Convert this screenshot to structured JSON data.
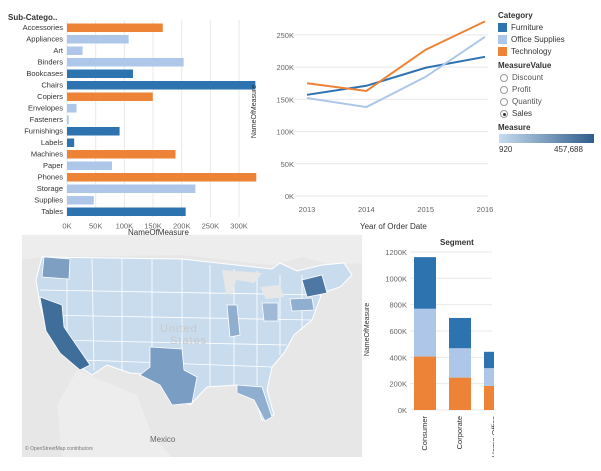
{
  "colors": {
    "furniture": "#2c73b0",
    "office_supplies": "#aec7e8",
    "technology": "#ed8336",
    "grid": "#e9e9e9",
    "axis_text": "#666666"
  },
  "bar_panel": {
    "header": "Sub-Catego..",
    "xlabel": "NameOfMeasure"
  },
  "line_panel": {
    "ylabel": "NameOfMeasure",
    "xlabel": "Year of Order Date"
  },
  "legend": {
    "category_title": "Category",
    "categories": [
      {
        "label": "Furniture",
        "color": "#2c73b0"
      },
      {
        "label": "Office Supplies",
        "color": "#aec7e8"
      },
      {
        "label": "Technology",
        "color": "#ed8336"
      }
    ],
    "measure_value_title": "MeasureValue",
    "measure_values": [
      {
        "label": "Discount",
        "selected": false
      },
      {
        "label": "Profit",
        "selected": false
      },
      {
        "label": "Quantity",
        "selected": false
      },
      {
        "label": "Sales",
        "selected": true
      }
    ],
    "measure_title": "Measure",
    "measure_min": "920",
    "measure_max": "457,688"
  },
  "map_panel": {
    "label_united": "United",
    "label_states": "States",
    "label_mexico": "Mexico",
    "attribution": "© OpenStreetMap contributors"
  },
  "segment_panel": {
    "title": "Segment",
    "ylabel": "NameOfMeasure"
  },
  "chart_data": [
    {
      "type": "bar",
      "orientation": "horizontal",
      "categories": [
        "Accessories",
        "Appliances",
        "Art",
        "Binders",
        "Bookcases",
        "Chairs",
        "Copiers",
        "Envelopes",
        "Fasteners",
        "Furnishings",
        "Labels",
        "Machines",
        "Paper",
        "Phones",
        "Storage",
        "Supplies",
        "Tables"
      ],
      "category_group": [
        "Technology",
        "Office Supplies",
        "Office Supplies",
        "Office Supplies",
        "Furniture",
        "Furniture",
        "Technology",
        "Office Supplies",
        "Office Supplies",
        "Furniture",
        "Furniture",
        "Technology",
        "Office Supplies",
        "Technology",
        "Office Supplies",
        "Office Supplies",
        "Furniture"
      ],
      "values": [
        167000,
        107500,
        27100,
        203400,
        115000,
        328400,
        149500,
        16500,
        3000,
        91700,
        12500,
        189200,
        78500,
        330000,
        223800,
        46700,
        206900
      ],
      "xlabel": "NameOfMeasure",
      "xlim": [
        0,
        340000
      ],
      "xticks": [
        "0K",
        "50K",
        "100K",
        "150K",
        "200K",
        "250K",
        "300K"
      ],
      "grid": true
    },
    {
      "type": "line",
      "x": [
        "2013",
        "2014",
        "2015",
        "2016"
      ],
      "series": [
        {
          "name": "Furniture",
          "values": [
            157000,
            171000,
            199000,
            216000
          ]
        },
        {
          "name": "Office Supplies",
          "values": [
            152000,
            138000,
            185000,
            247000
          ]
        },
        {
          "name": "Technology",
          "values": [
            175000,
            163000,
            227000,
            271000
          ]
        }
      ],
      "xlabel": "Year of Order Date",
      "ylabel": "NameOfMeasure",
      "ylim": [
        0,
        270000
      ],
      "yticks": [
        "0K",
        "50K",
        "100K",
        "150K",
        "200K",
        "250K"
      ],
      "grid": true
    },
    {
      "type": "bar",
      "stacked": true,
      "title": "Segment",
      "categories": [
        "Consumer",
        "Corporate",
        "Home Office"
      ],
      "series": [
        {
          "name": "Technology",
          "values": [
            406000,
            246000,
            183000
          ]
        },
        {
          "name": "Office Supplies",
          "values": [
            363000,
            223000,
            135000
          ]
        },
        {
          "name": "Furniture",
          "values": [
            392000,
            230000,
            124000
          ]
        }
      ],
      "ylabel": "NameOfMeasure",
      "ylim": [
        0,
        1200000
      ],
      "yticks": [
        "0K",
        "200K",
        "400K",
        "600K",
        "800K",
        "1000K",
        "1200K"
      ],
      "grid": true
    }
  ]
}
